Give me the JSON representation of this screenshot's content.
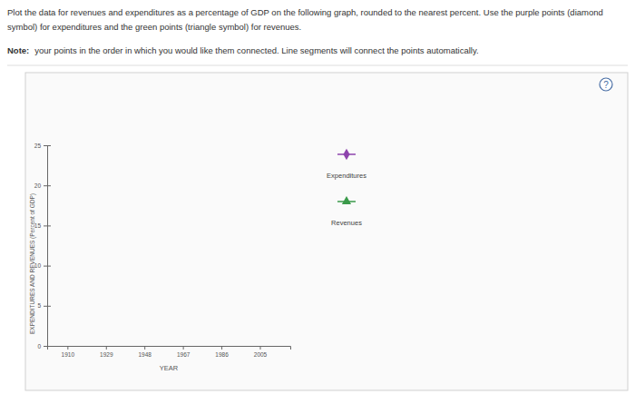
{
  "chart_data": {
    "type": "line",
    "title": "Plot the data for revenues and expenditures as a percentage of GDP on the following graph, rounded to the nearest percent. Use the purple points (diamond symbol) for expenditures and the green points (triangle symbol) for revenues.",
    "annotations": [
      "Note:",
      "your points in the order in which you would like them connected. Line segments will connect the points automatically.",
      "?"
    ],
    "x_label": "YEAR",
    "y_label": "EXPENDITURES AND REVENUES (Percent of GDP)",
    "x": [
      1910,
      1929,
      1948,
      1967,
      1986,
      2005
    ],
    "xlim": [
      1900,
      2020
    ],
    "xticks": [
      1910,
      1929,
      1948,
      1967,
      1986,
      2005
    ],
    "ylim": [
      0,
      25
    ],
    "yticks": [
      0,
      5,
      10,
      15,
      20,
      25
    ],
    "grid": false,
    "legend": "right",
    "series": [
      {
        "name": "Expenditures",
        "color": "#8e44ad",
        "marker": "diamond",
        "values": [
          null,
          null,
          null,
          null,
          null,
          null
        ]
      },
      {
        "name": "Revenues",
        "color": "#3a9a4a",
        "marker": "triangle",
        "values": [
          null,
          null,
          null,
          null,
          null,
          null
        ]
      }
    ]
  }
}
